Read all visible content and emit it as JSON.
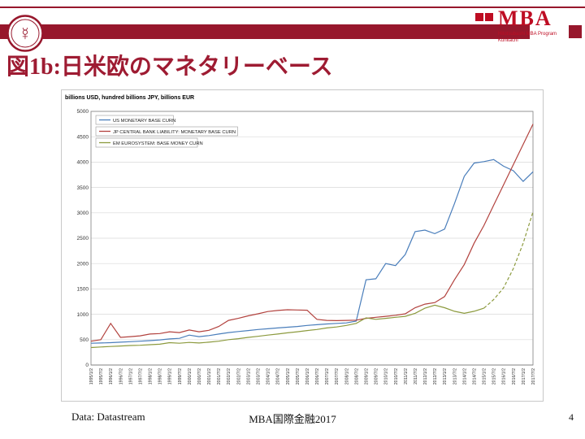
{
  "slide": {
    "title": "図1b:日米欧のマネタリーベース",
    "footer_left": "Data: Datastream",
    "footer_center": "MBA国際金融2017",
    "page_number": "4"
  },
  "logo": {
    "text": "MBA",
    "subtext_line1": "Hitotsubashi MBA Program",
    "subtext_line2": "Kunitachi",
    "seal_glyph": "☿"
  },
  "colors": {
    "brand_maroon": "#97172C",
    "title_maroon": "#9E1B32",
    "logo_red": "#BE0D23",
    "us_line": "#4A7EBB",
    "jp_line": "#B2423E",
    "eu_line": "#8C9A3E",
    "grid": "#d9d9d9",
    "plot_border": "#808080"
  },
  "chart_data": {
    "type": "line",
    "unit_label": "billions USD, hundred billions JPY, billions EUR",
    "ylim": [
      0,
      5000
    ],
    "ytick_step": 500,
    "grid": true,
    "legend_position": "top-left",
    "x_labels": [
      "1995/1/2",
      "1995/7/2",
      "1996/1/2",
      "1996/7/2",
      "1997/1/2",
      "1997/7/2",
      "1998/1/2",
      "1998/7/2",
      "1999/1/2",
      "1999/7/2",
      "2000/1/2",
      "2000/7/2",
      "2001/1/2",
      "2001/7/2",
      "2002/1/2",
      "2002/7/2",
      "2003/1/2",
      "2003/7/2",
      "2004/1/2",
      "2004/7/2",
      "2005/1/2",
      "2005/7/2",
      "2006/1/2",
      "2006/7/2",
      "2007/1/2",
      "2007/7/2",
      "2008/1/2",
      "2008/7/2",
      "2009/1/2",
      "2009/7/2",
      "2010/1/2",
      "2010/7/2",
      "2011/1/2",
      "2011/7/2",
      "2012/1/2",
      "2012/7/2",
      "2013/1/2",
      "2013/7/2",
      "2014/1/2",
      "2014/7/2",
      "2015/1/2",
      "2015/7/2",
      "2016/1/2",
      "2016/7/2",
      "2017/1/2",
      "2017/7/2"
    ],
    "series": [
      {
        "name": "US MONETARY BASE CURN",
        "color": "#4A7EBB",
        "values": [
          430,
          435,
          440,
          450,
          460,
          470,
          480,
          495,
          515,
          525,
          590,
          560,
          580,
          610,
          640,
          660,
          680,
          700,
          715,
          730,
          745,
          760,
          780,
          795,
          810,
          820,
          830,
          865,
          1680,
          1700,
          2000,
          1960,
          2180,
          2630,
          2660,
          2590,
          2680,
          3180,
          3720,
          3980,
          4010,
          4050,
          3920,
          3830,
          3620,
          3810
        ]
      },
      {
        "name": "JP CENTRAL BANK LIABILITY: MONETARY BASE CURN",
        "color": "#B2423E",
        "values": [
          470,
          500,
          820,
          545,
          560,
          575,
          610,
          620,
          655,
          640,
          690,
          655,
          685,
          760,
          880,
          920,
          970,
          1010,
          1055,
          1075,
          1090,
          1085,
          1080,
          900,
          880,
          875,
          880,
          885,
          920,
          940,
          960,
          980,
          1010,
          1130,
          1200,
          1230,
          1350,
          1680,
          1980,
          2400,
          2750,
          3150,
          3550,
          3950,
          4350,
          4750
        ]
      },
      {
        "name": "EM EUROSYSTEM: BASE MONEY CURN",
        "color": "#8C9A3E",
        "dash_from": 40,
        "values": [
          345,
          355,
          365,
          375,
          385,
          390,
          400,
          410,
          440,
          430,
          445,
          435,
          450,
          470,
          500,
          520,
          545,
          565,
          590,
          610,
          635,
          655,
          680,
          700,
          730,
          750,
          780,
          820,
          930,
          900,
          920,
          940,
          960,
          1020,
          1120,
          1180,
          1130,
          1060,
          1020,
          1060,
          1120,
          1290,
          1520,
          1900,
          2400,
          3020
        ]
      }
    ]
  }
}
